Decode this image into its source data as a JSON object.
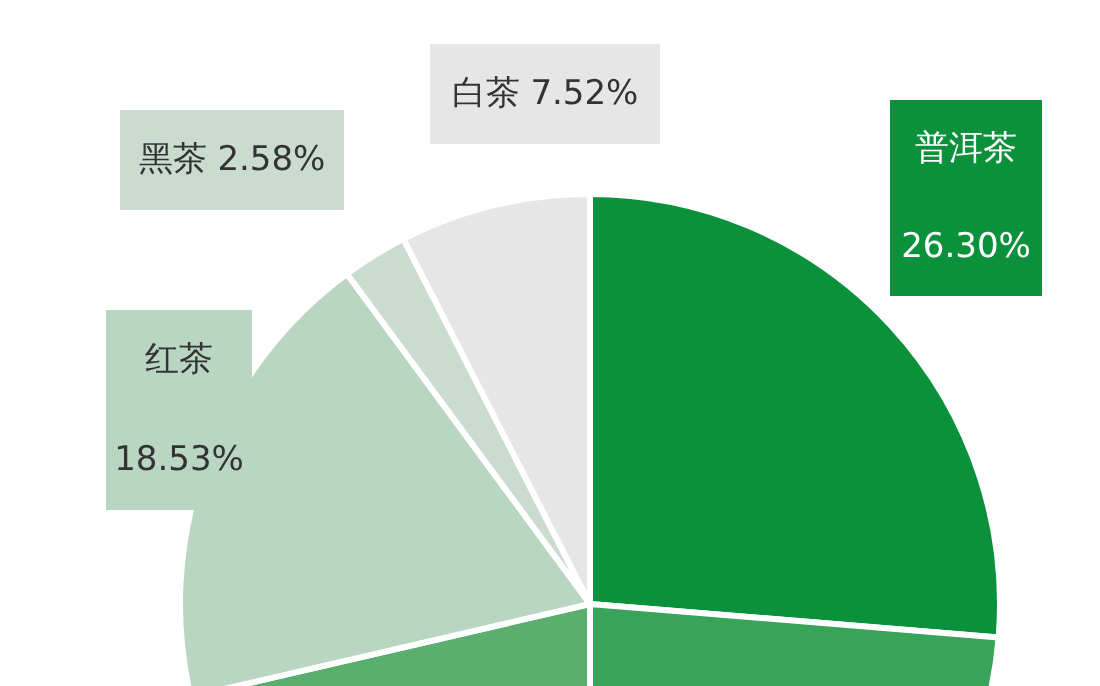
{
  "chart_data": {
    "type": "pie",
    "categories": [
      "普洱茶",
      null,
      null,
      "红茶",
      "黑茶",
      "白茶"
    ],
    "values": [
      26.3,
      23.7,
      21.37,
      18.53,
      2.58,
      7.52
    ],
    "colors": [
      "#0b913b",
      "#3aa35a",
      "#5aae6e",
      "#b9d6c3",
      "#c9dccf",
      "#e6e6e6"
    ],
    "value_labels": [
      "26.30%",
      null,
      null,
      "18.53%",
      "2.58%",
      "7.52%"
    ]
  }
}
